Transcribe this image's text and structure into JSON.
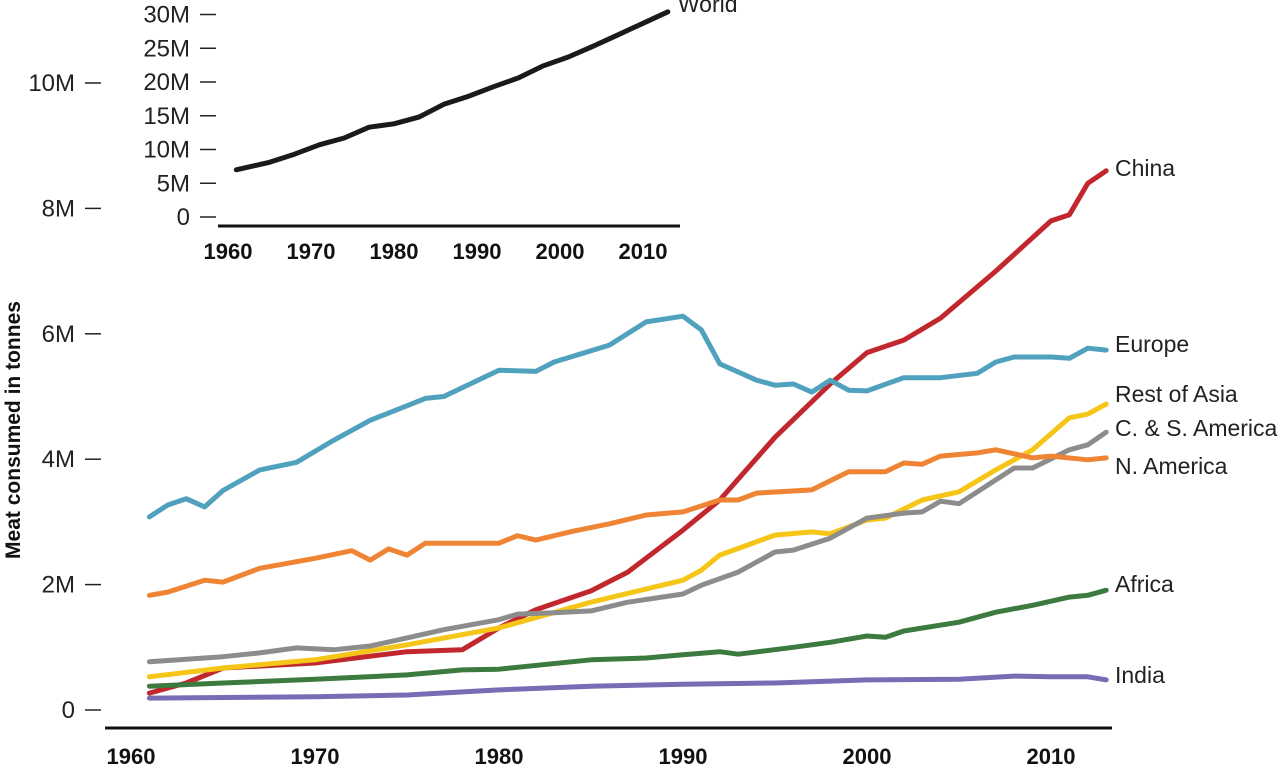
{
  "chart_data": [
    {
      "type": "line",
      "title": "",
      "xlabel": "",
      "ylabel": "Meat consumed in tonnes",
      "xlim": [
        1960,
        2013
      ],
      "ylim": [
        0,
        10000000
      ],
      "x_ticks": [
        "1960",
        "1970",
        "1980",
        "1990",
        "2000",
        "2010"
      ],
      "y_ticks": [
        "0",
        "2M",
        "4M",
        "6M",
        "8M",
        "10M"
      ],
      "grid": false,
      "legend": "direct labels at right end of lines",
      "units_note": "values in millions of tonnes",
      "series": [
        {
          "name": "China",
          "color": "#c1272d",
          "x": [
            1961,
            1963,
            1965,
            1970,
            1975,
            1978,
            1980,
            1982,
            1985,
            1987,
            1990,
            1992,
            1995,
            1998,
            2000,
            2002,
            2004,
            2007,
            2010,
            2011,
            2012,
            2013
          ],
          "values": [
            0.27,
            0.43,
            0.67,
            0.75,
            0.93,
            0.96,
            1.31,
            1.6,
            1.9,
            2.2,
            2.87,
            3.35,
            4.35,
            5.2,
            5.7,
            5.9,
            6.25,
            7.0,
            7.8,
            7.9,
            8.4,
            8.6
          ]
        },
        {
          "name": "Europe",
          "color": "#4fa1bd",
          "x": [
            1961,
            1962,
            1963,
            1964,
            1965,
            1967,
            1969,
            1971,
            1973,
            1976,
            1977,
            1980,
            1982,
            1983,
            1986,
            1988,
            1990,
            1991,
            1992,
            1994,
            1995,
            1996,
            1997,
            1998,
            1999,
            2000,
            2002,
            2004,
            2006,
            2007,
            2008,
            2010,
            2011,
            2012,
            2013
          ],
          "values": [
            3.08,
            3.27,
            3.37,
            3.24,
            3.5,
            3.83,
            3.95,
            4.3,
            4.62,
            4.97,
            5.0,
            5.42,
            5.4,
            5.55,
            5.82,
            6.19,
            6.28,
            6.06,
            5.52,
            5.26,
            5.18,
            5.2,
            5.07,
            5.26,
            5.1,
            5.09,
            5.3,
            5.3,
            5.37,
            5.55,
            5.63,
            5.63,
            5.61,
            5.77,
            5.74
          ]
        },
        {
          "name": "Rest of Asia",
          "color": "#f5c518",
          "x": [
            1961,
            1965,
            1970,
            1975,
            1980,
            1985,
            1990,
            1991,
            1992,
            1995,
            1997,
            1998,
            2000,
            2001,
            2003,
            2005,
            2007,
            2009,
            2011,
            2012,
            2013
          ],
          "values": [
            0.53,
            0.67,
            0.8,
            1.04,
            1.31,
            1.72,
            2.07,
            2.23,
            2.47,
            2.79,
            2.84,
            2.81,
            3.03,
            3.06,
            3.35,
            3.48,
            3.83,
            4.15,
            4.66,
            4.72,
            4.88
          ]
        },
        {
          "name": "C. & S. America",
          "color": "#8c8c8c",
          "x": [
            1961,
            1963,
            1965,
            1967,
            1969,
            1971,
            1973,
            1975,
            1977,
            1980,
            1981,
            1983,
            1985,
            1987,
            1990,
            1991,
            1993,
            1995,
            1996,
            1998,
            2000,
            2002,
            2003,
            2004,
            2005,
            2008,
            2009,
            2011,
            2012,
            2013
          ],
          "values": [
            0.77,
            0.81,
            0.85,
            0.91,
            0.99,
            0.96,
            1.02,
            1.15,
            1.28,
            1.44,
            1.53,
            1.55,
            1.58,
            1.72,
            1.85,
            1.99,
            2.2,
            2.52,
            2.55,
            2.74,
            3.06,
            3.14,
            3.16,
            3.33,
            3.29,
            3.86,
            3.86,
            4.15,
            4.23,
            4.43
          ]
        },
        {
          "name": "N. America",
          "color": "#ee8434",
          "x": [
            1961,
            1962,
            1964,
            1965,
            1967,
            1970,
            1972,
            1973,
            1974,
            1975,
            1976,
            1980,
            1981,
            1982,
            1984,
            1986,
            1988,
            1990,
            1992,
            1993,
            1994,
            1997,
            1999,
            2001,
            2002,
            2003,
            2004,
            2006,
            2007,
            2009,
            2010,
            2012,
            2013
          ],
          "values": [
            1.83,
            1.88,
            2.07,
            2.04,
            2.26,
            2.42,
            2.54,
            2.39,
            2.57,
            2.47,
            2.66,
            2.66,
            2.78,
            2.71,
            2.85,
            2.97,
            3.11,
            3.16,
            3.35,
            3.35,
            3.46,
            3.51,
            3.8,
            3.8,
            3.94,
            3.92,
            4.05,
            4.1,
            4.15,
            4.02,
            4.05,
            3.99,
            4.02
          ]
        },
        {
          "name": "Africa",
          "color": "#3d7a3f",
          "x": [
            1961,
            1965,
            1970,
            1975,
            1978,
            1980,
            1985,
            1988,
            1990,
            1992,
            1993,
            1996,
            1998,
            2000,
            2001,
            2002,
            2005,
            2007,
            2009,
            2011,
            2012,
            2013
          ],
          "values": [
            0.38,
            0.43,
            0.49,
            0.56,
            0.64,
            0.65,
            0.8,
            0.83,
            0.88,
            0.93,
            0.89,
            1.0,
            1.08,
            1.18,
            1.16,
            1.26,
            1.4,
            1.56,
            1.67,
            1.8,
            1.83,
            1.91
          ]
        },
        {
          "name": "India",
          "color": "#7a6bb5",
          "x": [
            1961,
            1970,
            1975,
            1980,
            1985,
            1990,
            1995,
            2000,
            2005,
            2008,
            2010,
            2012,
            2013
          ],
          "values": [
            0.19,
            0.21,
            0.24,
            0.32,
            0.38,
            0.41,
            0.43,
            0.48,
            0.49,
            0.54,
            0.53,
            0.53,
            0.48
          ]
        }
      ]
    },
    {
      "type": "line",
      "title": "",
      "xlim": [
        1960,
        2013
      ],
      "ylim": [
        0,
        30000000
      ],
      "x_ticks": [
        "1960",
        "1970",
        "1980",
        "1990",
        "2000",
        "2010"
      ],
      "y_ticks": [
        "0",
        "5M",
        "10M",
        "15M",
        "20M",
        "25M",
        "30M"
      ],
      "grid": false,
      "units_note": "values in millions of tonnes",
      "series": [
        {
          "name": "World",
          "color": "#1a1a1a",
          "x": [
            1961,
            1965,
            1968,
            1971,
            1974,
            1977,
            1980,
            1983,
            1986,
            1989,
            1992,
            1995,
            1998,
            2001,
            2004,
            2007,
            2010,
            2013
          ],
          "values": [
            7.0,
            8.1,
            9.3,
            10.7,
            11.7,
            13.3,
            13.8,
            14.8,
            16.7,
            17.9,
            19.3,
            20.6,
            22.4,
            23.7,
            25.3,
            27.0,
            28.7,
            30.4
          ]
        }
      ]
    }
  ]
}
